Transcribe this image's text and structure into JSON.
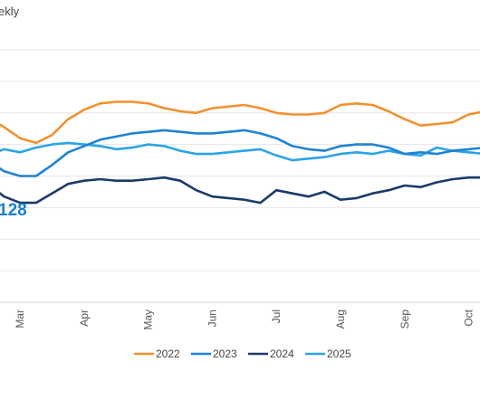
{
  "chart_data": {
    "type": "line",
    "title": "ekly",
    "callout": "128",
    "xlabel": "",
    "ylabel": "",
    "grid": true,
    "legend_position": "bottom",
    "ylim": [
      0,
      8
    ],
    "months": [
      {
        "label": "Mar",
        "x": 2
      },
      {
        "label": "Apr",
        "x": 6
      },
      {
        "label": "May",
        "x": 10
      },
      {
        "label": "Jun",
        "x": 14
      },
      {
        "label": "Jul",
        "x": 18
      },
      {
        "label": "Aug",
        "x": 22
      },
      {
        "label": "Sep",
        "x": 26
      },
      {
        "label": "Oct",
        "x": 30
      }
    ],
    "x": [
      0,
      1,
      2,
      3,
      4,
      5,
      6,
      7,
      8,
      9,
      10,
      11,
      12,
      13,
      14,
      15,
      16,
      17,
      18,
      19,
      20,
      21,
      22,
      23,
      24,
      25,
      26,
      27,
      28,
      29,
      30,
      31
    ],
    "series": [
      {
        "name": "2022",
        "color": "#f0922e",
        "values": [
          5.85,
          5.55,
          5.2,
          5.05,
          5.3,
          5.8,
          6.1,
          6.3,
          6.35,
          6.35,
          6.3,
          6.15,
          6.05,
          6.0,
          6.15,
          6.2,
          6.25,
          6.15,
          6.0,
          5.95,
          5.95,
          6.0,
          6.25,
          6.3,
          6.25,
          6.05,
          5.8,
          5.6,
          5.65,
          5.7,
          5.95,
          6.05
        ]
      },
      {
        "name": "2023",
        "color": "#1f83d4",
        "values": [
          4.5,
          4.15,
          4.0,
          4.0,
          4.35,
          4.75,
          4.95,
          5.15,
          5.25,
          5.35,
          5.4,
          5.45,
          5.4,
          5.35,
          5.35,
          5.4,
          5.45,
          5.35,
          5.2,
          4.95,
          4.85,
          4.8,
          4.95,
          5.0,
          5.0,
          4.9,
          4.7,
          4.75,
          4.7,
          4.8,
          4.85,
          4.9
        ]
      },
      {
        "name": "2024",
        "color": "#1b3a6b",
        "values": [
          3.75,
          3.35,
          3.15,
          3.15,
          3.45,
          3.75,
          3.85,
          3.9,
          3.85,
          3.85,
          3.9,
          3.95,
          3.85,
          3.55,
          3.35,
          3.3,
          3.25,
          3.15,
          3.55,
          3.45,
          3.35,
          3.5,
          3.25,
          3.3,
          3.45,
          3.55,
          3.7,
          3.65,
          3.8,
          3.9,
          3.95,
          3.95
        ]
      },
      {
        "name": "2025",
        "color": "#2aa4e6",
        "values": [
          4.65,
          4.85,
          4.75,
          4.9,
          5.0,
          5.05,
          5.0,
          4.95,
          4.85,
          4.9,
          5.0,
          4.95,
          4.8,
          4.7,
          4.7,
          4.75,
          4.8,
          4.85,
          4.65,
          4.5,
          4.55,
          4.6,
          4.7,
          4.75,
          4.7,
          4.8,
          4.7,
          4.65,
          4.9,
          4.8,
          4.75,
          4.7
        ]
      }
    ]
  }
}
